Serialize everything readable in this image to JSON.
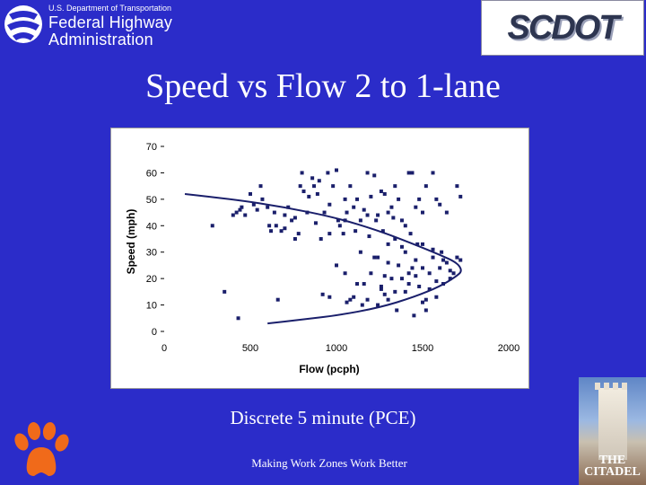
{
  "logos": {
    "fhwa": {
      "dept": "U.S. Department of Transportation",
      "line1": "Federal Highway",
      "line2": "Administration"
    },
    "scdot": "SCDOT",
    "citadel": [
      "THE",
      "CITADEL"
    ],
    "clemson_icon": "paw-icon"
  },
  "slide": {
    "title": "Speed vs Flow  2 to 1-lane",
    "caption": "Discrete 5 minute (PCE)",
    "footer": "Making Work Zones Work Better"
  },
  "colors": {
    "background": "#2b2cc9",
    "points": "#1a1f6b",
    "curve": "#1a1f6b",
    "clemson_orange": "#f06a1a"
  },
  "chart_data": {
    "type": "scatter",
    "title": "",
    "xlabel": "Flow (pcph)",
    "ylabel": "Speed (mph)",
    "xlim": [
      0,
      2000
    ],
    "ylim": [
      0,
      70
    ],
    "xticks": [
      0,
      500,
      1000,
      1500,
      2000
    ],
    "yticks": [
      0,
      10,
      20,
      30,
      40,
      50,
      60,
      70
    ],
    "grid": false,
    "legend": "none",
    "points": [
      [
        280,
        40
      ],
      [
        350,
        15
      ],
      [
        430,
        5
      ],
      [
        400,
        44
      ],
      [
        420,
        45
      ],
      [
        440,
        46
      ],
      [
        450,
        47
      ],
      [
        470,
        44
      ],
      [
        500,
        52
      ],
      [
        520,
        48
      ],
      [
        540,
        46
      ],
      [
        560,
        55
      ],
      [
        570,
        50
      ],
      [
        600,
        47
      ],
      [
        610,
        40
      ],
      [
        620,
        38
      ],
      [
        640,
        45
      ],
      [
        650,
        40
      ],
      [
        660,
        12
      ],
      [
        680,
        38
      ],
      [
        700,
        44
      ],
      [
        720,
        47
      ],
      [
        740,
        42
      ],
      [
        760,
        35
      ],
      [
        780,
        37
      ],
      [
        790,
        55
      ],
      [
        800,
        60
      ],
      [
        810,
        53
      ],
      [
        840,
        51
      ],
      [
        860,
        58
      ],
      [
        870,
        55
      ],
      [
        890,
        52
      ],
      [
        900,
        57
      ],
      [
        910,
        35
      ],
      [
        930,
        45
      ],
      [
        950,
        60
      ],
      [
        960,
        48
      ],
      [
        980,
        55
      ],
      [
        1000,
        61
      ],
      [
        1010,
        42
      ],
      [
        1020,
        40
      ],
      [
        1040,
        37
      ],
      [
        1050,
        50
      ],
      [
        1060,
        45
      ],
      [
        1080,
        55
      ],
      [
        1100,
        47
      ],
      [
        1120,
        50
      ],
      [
        1140,
        42
      ],
      [
        1160,
        46
      ],
      [
        1180,
        60
      ],
      [
        1200,
        51
      ],
      [
        1220,
        59
      ],
      [
        1240,
        44
      ],
      [
        1260,
        53
      ],
      [
        1280,
        52
      ],
      [
        1300,
        45
      ],
      [
        1320,
        47
      ],
      [
        1340,
        55
      ],
      [
        1360,
        50
      ],
      [
        1380,
        42
      ],
      [
        1400,
        40
      ],
      [
        1420,
        60
      ],
      [
        1440,
        60
      ],
      [
        1460,
        47
      ],
      [
        1480,
        50
      ],
      [
        1500,
        45
      ],
      [
        1520,
        55
      ],
      [
        1560,
        60
      ],
      [
        1580,
        50
      ],
      [
        1600,
        48
      ],
      [
        1640,
        45
      ],
      [
        1700,
        55
      ],
      [
        1720,
        51
      ],
      [
        1000,
        25
      ],
      [
        1050,
        22
      ],
      [
        1080,
        12
      ],
      [
        1100,
        13
      ],
      [
        1120,
        18
      ],
      [
        1140,
        30
      ],
      [
        1160,
        18
      ],
      [
        1180,
        12
      ],
      [
        1200,
        22
      ],
      [
        1220,
        28
      ],
      [
        1240,
        10
      ],
      [
        1260,
        17
      ],
      [
        1280,
        14
      ],
      [
        1300,
        33
      ],
      [
        1320,
        20
      ],
      [
        1340,
        15
      ],
      [
        1360,
        25
      ],
      [
        1380,
        20
      ],
      [
        1400,
        30
      ],
      [
        1420,
        18
      ],
      [
        1440,
        24
      ],
      [
        1460,
        27
      ],
      [
        1480,
        17
      ],
      [
        1500,
        33
      ],
      [
        1520,
        12
      ],
      [
        1540,
        22
      ],
      [
        1560,
        28
      ],
      [
        1580,
        19
      ],
      [
        1600,
        24
      ],
      [
        1620,
        27
      ],
      [
        1640,
        26
      ],
      [
        1660,
        23
      ],
      [
        1680,
        22
      ],
      [
        1700,
        28
      ],
      [
        1720,
        27
      ],
      [
        920,
        14
      ],
      [
        960,
        13
      ],
      [
        1060,
        11
      ],
      [
        1150,
        10
      ],
      [
        1260,
        16
      ],
      [
        1300,
        12
      ],
      [
        1350,
        8
      ],
      [
        1400,
        15
      ],
      [
        1450,
        6
      ],
      [
        1500,
        11
      ],
      [
        1540,
        16
      ],
      [
        1580,
        13
      ],
      [
        1620,
        18
      ],
      [
        1660,
        20
      ],
      [
        1520,
        8
      ],
      [
        1240,
        28
      ],
      [
        1340,
        35
      ],
      [
        1380,
        32
      ],
      [
        1430,
        37
      ],
      [
        1470,
        33
      ],
      [
        1560,
        31
      ],
      [
        1610,
        30
      ],
      [
        1500,
        24
      ],
      [
        1460,
        21
      ],
      [
        1420,
        22
      ],
      [
        1280,
        21
      ],
      [
        1300,
        26
      ],
      [
        1190,
        36
      ],
      [
        1270,
        38
      ],
      [
        1230,
        42
      ],
      [
        1180,
        44
      ],
      [
        1330,
        43
      ],
      [
        1110,
        38
      ],
      [
        1050,
        42
      ],
      [
        960,
        37
      ],
      [
        880,
        41
      ],
      [
        830,
        45
      ],
      [
        760,
        43
      ],
      [
        700,
        39
      ]
    ],
    "curve": [
      [
        120,
        52
      ],
      [
        400,
        50
      ],
      [
        700,
        47
      ],
      [
        1000,
        43
      ],
      [
        1250,
        38
      ],
      [
        1450,
        33
      ],
      [
        1600,
        29
      ],
      [
        1700,
        26
      ],
      [
        1730,
        23
      ],
      [
        1700,
        21
      ],
      [
        1600,
        17
      ],
      [
        1450,
        13
      ],
      [
        1250,
        9
      ],
      [
        1000,
        6
      ],
      [
        800,
        4.5
      ],
      [
        600,
        3
      ]
    ]
  }
}
